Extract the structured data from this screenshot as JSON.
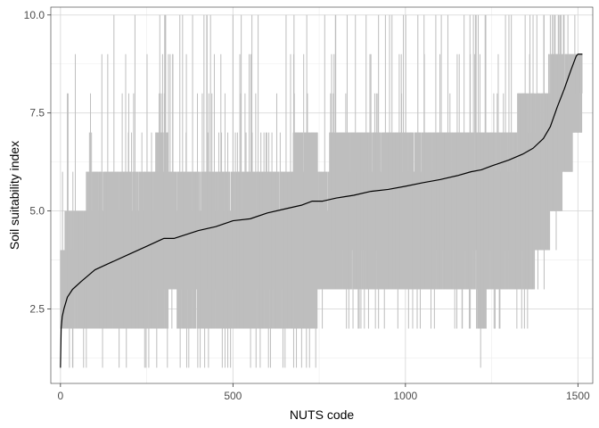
{
  "chart_data": {
    "type": "line",
    "title": "",
    "xlabel": "NUTS code",
    "ylabel": "Soil suitability index",
    "xlim": [
      -28,
      1543
    ],
    "ylim": [
      0.6,
      10.2
    ],
    "x_ticks": [
      0,
      500,
      1000,
      1500
    ],
    "x_tick_labels": [
      "0",
      "500",
      "1000",
      "1500"
    ],
    "y_ticks": [
      2.5,
      5.0,
      7.5,
      10.0
    ],
    "y_tick_labels": [
      "2.5",
      "5.0",
      "7.5",
      "10.0"
    ],
    "grid": true,
    "legend": "none",
    "n_points": 1513,
    "series": [
      {
        "kind": "range",
        "color": "#bebebe",
        "description_points": {
          "x": [
            0,
            25,
            50,
            100,
            150,
            200,
            250,
            300,
            325,
            350,
            400,
            450,
            500,
            550,
            600,
            650,
            700,
            730,
            760,
            800,
            850,
            900,
            950,
            1000,
            1050,
            1100,
            1150,
            1190,
            1220,
            1250,
            1300,
            1350,
            1400,
            1440,
            1470,
            1500,
            1513
          ],
          "ymin": [
            2.0,
            2.0,
            2.0,
            2.0,
            2.0,
            2.0,
            2.0,
            2.0,
            3.0,
            2.0,
            2.0,
            2.0,
            2.0,
            2.0,
            2.0,
            2.0,
            2.0,
            2.0,
            3.0,
            3.0,
            3.0,
            3.0,
            3.0,
            3.0,
            3.0,
            3.0,
            3.0,
            3.0,
            2.0,
            3.0,
            3.0,
            3.0,
            4.0,
            5.0,
            6.0,
            7.0,
            7.0
          ],
          "ymax": [
            4.0,
            5.0,
            5.0,
            6.0,
            6.0,
            6.0,
            6.0,
            7.0,
            6.0,
            6.0,
            6.0,
            6.0,
            6.0,
            6.0,
            6.0,
            6.0,
            7.0,
            7.0,
            6.0,
            7.0,
            7.0,
            7.0,
            7.0,
            7.0,
            7.0,
            7.0,
            7.0,
            7.0,
            7.0,
            7.0,
            7.0,
            8.0,
            8.0,
            9.0,
            9.0,
            9.0,
            9.0
          ]
        }
      },
      {
        "kind": "line",
        "color": "#000000",
        "x": [
          0,
          2,
          5,
          10,
          20,
          35,
          60,
          100,
          150,
          200,
          250,
          300,
          330,
          400,
          450,
          500,
          550,
          600,
          650,
          700,
          730,
          760,
          800,
          850,
          900,
          950,
          1000,
          1050,
          1100,
          1150,
          1190,
          1220,
          1250,
          1300,
          1340,
          1370,
          1400,
          1420,
          1440,
          1460,
          1480,
          1495,
          1500,
          1513
        ],
        "y": [
          1.0,
          2.0,
          2.3,
          2.5,
          2.8,
          3.0,
          3.2,
          3.5,
          3.7,
          3.9,
          4.1,
          4.3,
          4.3,
          4.5,
          4.6,
          4.75,
          4.8,
          4.95,
          5.05,
          5.15,
          5.25,
          5.25,
          5.33,
          5.4,
          5.5,
          5.55,
          5.63,
          5.72,
          5.8,
          5.9,
          6.0,
          6.05,
          6.15,
          6.3,
          6.45,
          6.6,
          6.85,
          7.15,
          7.65,
          8.1,
          8.6,
          8.95,
          9.0,
          9.0
        ]
      }
    ]
  },
  "colors": {
    "panel_border": "#333333",
    "grid_major": "#d9d9d9",
    "grid_minor": "#ececec",
    "range_lines": "#bebebe",
    "median_line": "#000000"
  }
}
